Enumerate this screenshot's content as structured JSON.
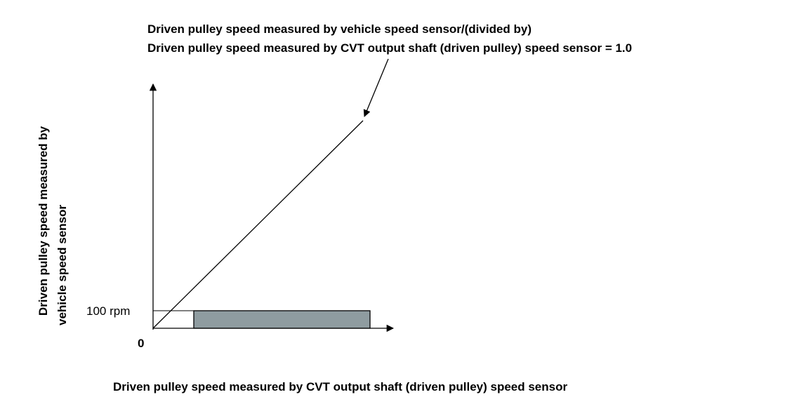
{
  "annotation": {
    "line1": "Driven pulley speed measured by vehicle speed sensor/(divided by)",
    "line2": "Driven pulley speed measured by CVT output shaft (driven pulley) speed sensor = 1.0"
  },
  "y_axis_label": {
    "line1": "Driven pulley speed measured by",
    "line2": "vehicle speed sensor"
  },
  "x_axis_label": "Driven pulley speed measured by CVT output shaft (driven pulley) speed sensor",
  "tick_100rpm": "100 rpm",
  "origin_label": "0",
  "colors": {
    "shaded_band": "#8f9ca0",
    "line": "#000000"
  }
}
